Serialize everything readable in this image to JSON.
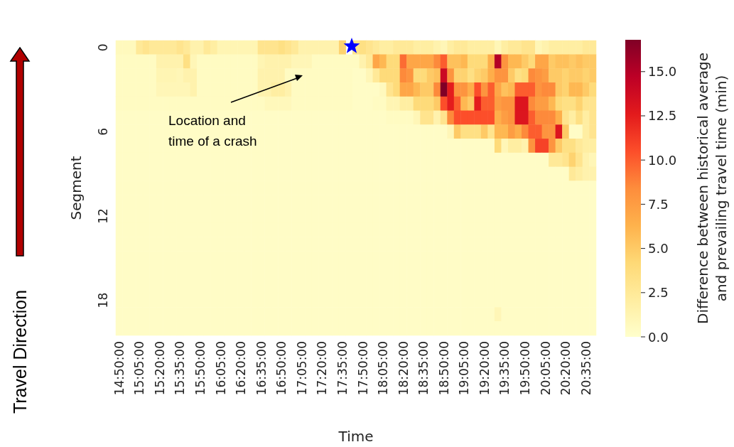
{
  "chart_data": {
    "type": "heatmap",
    "categories": [
      "14:50:00",
      null,
      null,
      "15:05:00",
      null,
      null,
      "15:20:00",
      null,
      null,
      "15:35:00",
      null,
      null,
      "15:50:00",
      null,
      null,
      "16:05:00",
      null,
      null,
      "16:20:00",
      null,
      null,
      "16:35:00",
      null,
      null,
      "16:50:00",
      null,
      null,
      "17:05:00",
      null,
      null,
      "17:20:00",
      null,
      null,
      "17:35:00",
      null,
      null,
      "17:50:00",
      null,
      null,
      "18:05:00",
      null,
      null,
      "18:20:00",
      null,
      null,
      "18:35:00",
      null,
      null,
      "18:50:00",
      null,
      null,
      "19:05:00",
      null,
      null,
      "19:20:00",
      null,
      null,
      "19:35:00",
      null,
      null,
      "19:50:00",
      null,
      null,
      "20:05:00",
      null,
      null,
      "20:20:00",
      null,
      null,
      "20:35:00",
      null
    ],
    "y_categories": [
      "0",
      null,
      null,
      null,
      null,
      null,
      "6",
      null,
      null,
      null,
      null,
      null,
      "12",
      null,
      null,
      null,
      null,
      null,
      "18",
      null,
      null
    ],
    "xlabel": "Time",
    "ylabel": "Segment",
    "clabel": "Difference between historical average\nand prevailing travel time (min)",
    "clim": [
      0,
      16.8
    ],
    "cticks": [
      {
        "value": 0,
        "label": "0.0"
      },
      {
        "value": 2.5,
        "label": "2.5"
      },
      {
        "value": 5,
        "label": "5.0"
      },
      {
        "value": 7.5,
        "label": "7.5"
      },
      {
        "value": 10,
        "label": "10.0"
      },
      {
        "value": 12.5,
        "label": "12.5"
      },
      {
        "value": 15,
        "label": "15.0"
      }
    ],
    "annotations": [
      "Location and time of a crash",
      "Travel Direction"
    ],
    "cells": [
      [
        0.7,
        0.7,
        0.7,
        2.5,
        3,
        2.5,
        2.5,
        2.5,
        2.5,
        3,
        2.5,
        1.5,
        1.5,
        2.5,
        2,
        1.2,
        1.2,
        1.2,
        1.2,
        1.2,
        1.2,
        3,
        3,
        3,
        3.5,
        3,
        2.5,
        1.5,
        1.5,
        1.5,
        1.5,
        1.5,
        1.5,
        4.5,
        null,
        3,
        3.5,
        3,
        2.5,
        2,
        2,
        2.5,
        2.5,
        2.5,
        2,
        2,
        2,
        1.5,
        1,
        2,
        2.5,
        2.5,
        2,
        2,
        2,
        2,
        1,
        2,
        2.5,
        2.5,
        3,
        3,
        1,
        1.5,
        2,
        2,
        2,
        2,
        2,
        2.5,
        2.5
      ],
      [
        0.5,
        0.5,
        0.5,
        0.5,
        0.5,
        0.5,
        1.5,
        1.5,
        1.5,
        1.5,
        3.5,
        1,
        0.5,
        0.5,
        0.5,
        0.5,
        0.5,
        0.5,
        0.5,
        0.5,
        0.5,
        1.2,
        1.5,
        1.5,
        1.5,
        1.5,
        1,
        1,
        1,
        0.5,
        0.5,
        0.5,
        0.5,
        0.5,
        0.5,
        0.5,
        1.5,
        2.5,
        7,
        6,
        4,
        4,
        9.5,
        7,
        7,
        7,
        7,
        8.5,
        10,
        5.5,
        5.5,
        6,
        4,
        4,
        4,
        6.5,
        15,
        8,
        6,
        6,
        5,
        4,
        7,
        7,
        5,
        5.5,
        5.5,
        5,
        5.5,
        5,
        5
      ],
      [
        0.5,
        0.5,
        0.5,
        0.5,
        0.5,
        0.5,
        1.2,
        1.2,
        1.2,
        1,
        1.5,
        1.5,
        0.5,
        0.5,
        0.5,
        0.5,
        0.5,
        0.5,
        0.5,
        0.5,
        0.5,
        1.5,
        1.5,
        1.5,
        1.5,
        0.5,
        0.5,
        0.5,
        0.5,
        0.5,
        0.5,
        0.5,
        0.5,
        0.5,
        0.5,
        0.3,
        0.3,
        1,
        2.5,
        4,
        4,
        4,
        8.5,
        8,
        4,
        4,
        5,
        5.5,
        14,
        8,
        4.5,
        4.5,
        3.5,
        4.5,
        5,
        6.5,
        8,
        8,
        5,
        3.5,
        4,
        8.5,
        8,
        7.5,
        5,
        5,
        4.5,
        5,
        5,
        4.5,
        5
      ],
      [
        0.5,
        0.5,
        0.5,
        0.5,
        0.5,
        0.5,
        1,
        1,
        1,
        1,
        1,
        1.5,
        0.5,
        0.5,
        0.5,
        0.5,
        0.5,
        0.5,
        0.5,
        0.5,
        0.5,
        1.5,
        1.5,
        2,
        2,
        1.5,
        0.5,
        0.5,
        0.5,
        0.5,
        0.5,
        0.5,
        0.5,
        0.5,
        0.5,
        0.3,
        0.3,
        0.3,
        0.3,
        0.7,
        3,
        4,
        7,
        7,
        6,
        5,
        5,
        8.5,
        16.8,
        12.5,
        8,
        8,
        6.5,
        10.5,
        8,
        10,
        7,
        5.5,
        6,
        10,
        10,
        10,
        8,
        8.5,
        8.5,
        5,
        4.5,
        6,
        6,
        5,
        4
      ],
      [
        0.5,
        0.5,
        0.5,
        0.5,
        0.5,
        0.5,
        0.5,
        0.5,
        0.5,
        0.5,
        0.5,
        0.5,
        0.5,
        0.5,
        0.5,
        0.5,
        0.5,
        0.5,
        0.5,
        0.5,
        0.5,
        0.5,
        0.8,
        0.8,
        0.8,
        0.8,
        0.5,
        0.5,
        0.5,
        0.5,
        0.5,
        0.5,
        0.5,
        0.5,
        0.5,
        0.3,
        0.3,
        0.3,
        0.5,
        0.5,
        1.2,
        1.2,
        2,
        2,
        4,
        4,
        4,
        5,
        10.5,
        12.5,
        10,
        6,
        5,
        12.5,
        10,
        10,
        7.5,
        8,
        8,
        13,
        13,
        8.5,
        7.5,
        7.5,
        6,
        4,
        3.5,
        3.5,
        4.5,
        3,
        3
      ],
      [
        0.3,
        0.3,
        0.3,
        0.3,
        0.3,
        0.3,
        0.3,
        0.3,
        0.3,
        0.3,
        0.3,
        0.3,
        0.3,
        0.3,
        0.3,
        0.3,
        0.3,
        0.3,
        0.3,
        0.3,
        0.3,
        0.3,
        0.3,
        0.3,
        0.3,
        0.3,
        0.3,
        0.3,
        0.3,
        0.3,
        0.3,
        0.3,
        0.3,
        0.3,
        0.3,
        0.3,
        0.3,
        0.3,
        0.3,
        0.3,
        0.5,
        0.5,
        0.5,
        0.5,
        1,
        3,
        3,
        1.5,
        3,
        8.5,
        10.5,
        10.5,
        10.5,
        10.5,
        10.5,
        10.5,
        6.5,
        7.5,
        8,
        13,
        13,
        10,
        8.5,
        8.5,
        8.5,
        6.5,
        3,
        2,
        3.5,
        2,
        3
      ],
      [
        0.3,
        0.3,
        0.3,
        0.3,
        0.3,
        0.3,
        0.3,
        0.3,
        0.3,
        0.3,
        0.3,
        0.3,
        0.3,
        0.3,
        0.3,
        0.3,
        0.3,
        0.3,
        0.3,
        0.3,
        0.3,
        0.3,
        0.3,
        0.3,
        0.3,
        0.3,
        0.3,
        0.3,
        0.3,
        0.3,
        0.3,
        0.3,
        0.3,
        0.3,
        0.3,
        0.3,
        0.3,
        0.3,
        0.3,
        0.3,
        0.3,
        0.3,
        0.3,
        0.3,
        0.3,
        0.3,
        0.3,
        0.3,
        0.3,
        1,
        5,
        3.5,
        3.5,
        3.5,
        5,
        3,
        6,
        6,
        7.5,
        6.5,
        8.5,
        10,
        10,
        8,
        8,
        13,
        5,
        0.3,
        0.3,
        2,
        3
      ],
      [
        0.3,
        0.3,
        0.3,
        0.3,
        0.3,
        0.3,
        0.3,
        0.3,
        0.3,
        0.3,
        0.3,
        0.3,
        0.3,
        0.3,
        0.3,
        0.3,
        0.3,
        0.3,
        0.3,
        0.3,
        0.3,
        0.3,
        0.3,
        0.3,
        0.3,
        0.3,
        0.3,
        0.3,
        0.3,
        0.3,
        0.3,
        0.3,
        0.3,
        0.3,
        0.3,
        0.3,
        0.3,
        0.3,
        0.3,
        0.3,
        0.3,
        0.3,
        0.3,
        0.3,
        0.3,
        0.3,
        0.3,
        0.3,
        0.3,
        0.3,
        0.3,
        0.3,
        0.3,
        0.3,
        0.3,
        0.3,
        4,
        1,
        2,
        2,
        1.5,
        8,
        11,
        11,
        8,
        5,
        3.5,
        3.5,
        2.5,
        2,
        2
      ],
      [
        0.3,
        0.3,
        0.3,
        0.3,
        0.3,
        0.3,
        0.3,
        0.3,
        0.3,
        0.3,
        0.3,
        0.3,
        0.3,
        0.3,
        0.3,
        0.3,
        0.3,
        0.3,
        0.3,
        0.3,
        0.3,
        0.3,
        0.3,
        0.3,
        0.3,
        0.3,
        0.3,
        0.3,
        0.3,
        0.3,
        0.3,
        0.3,
        0.3,
        0.3,
        0.3,
        0.3,
        0.3,
        0.3,
        0.3,
        0.3,
        0.3,
        0.3,
        0.3,
        0.3,
        0.3,
        0.3,
        0.3,
        0.3,
        0.3,
        0.3,
        0.3,
        0.3,
        0.3,
        0.3,
        0.3,
        0.3,
        0.3,
        0.3,
        0.3,
        0.3,
        0.3,
        0.3,
        0.3,
        0.3,
        2.5,
        2.5,
        3,
        4.5,
        3,
        1.5,
        1
      ],
      [
        0.3,
        0.3,
        0.3,
        0.3,
        0.3,
        0.3,
        0.3,
        0.3,
        0.3,
        0.3,
        0.3,
        0.3,
        0.3,
        0.3,
        0.3,
        0.3,
        0.3,
        0.3,
        0.3,
        0.3,
        0.3,
        0.3,
        0.3,
        0.3,
        0.3,
        0.3,
        0.3,
        0.3,
        0.3,
        0.3,
        0.3,
        0.3,
        0.3,
        0.3,
        0.3,
        0.3,
        0.3,
        0.3,
        0.3,
        0.3,
        0.3,
        0.3,
        0.3,
        0.3,
        0.3,
        0.3,
        0.3,
        0.3,
        0.3,
        0.3,
        0.3,
        0.3,
        0.3,
        0.3,
        0.3,
        0.3,
        0.3,
        0.3,
        0.3,
        0.3,
        0.3,
        0.3,
        0.3,
        0.3,
        0.3,
        0.3,
        0.3,
        2.5,
        2,
        1.5,
        1.5
      ],
      [
        0.3,
        0.3,
        0.3,
        0.3,
        0.3,
        0.3,
        0.3,
        0.3,
        0.3,
        0.3,
        0.3,
        0.3,
        0.3,
        0.3,
        0.3,
        0.3,
        0.3,
        0.3,
        0.3,
        0.3,
        0.3,
        0.3,
        0.3,
        0.3,
        0.3,
        0.3,
        0.3,
        0.3,
        0.3,
        0.3,
        0.3,
        0.3,
        0.3,
        0.3,
        0.3,
        0.3,
        0.3,
        0.3,
        0.3,
        0.3,
        0.3,
        0.3,
        0.3,
        0.3,
        0.3,
        0.3,
        0.3,
        0.3,
        0.3,
        0.3,
        0.3,
        0.3,
        0.3,
        0.3,
        0.3,
        0.3,
        0.3,
        0.3,
        0.3,
        0.3,
        0.3,
        0.3,
        0.3,
        0.3,
        0.3,
        0.3,
        0.3,
        0.3,
        0.3,
        0.3,
        0.3
      ],
      [
        0.3,
        0.3,
        0.3,
        0.3,
        0.3,
        0.3,
        0.3,
        0.3,
        0.3,
        0.3,
        0.3,
        0.3,
        0.3,
        0.3,
        0.3,
        0.3,
        0.3,
        0.3,
        0.3,
        0.3,
        0.3,
        0.3,
        0.3,
        0.3,
        0.3,
        0.3,
        0.3,
        0.3,
        0.3,
        0.3,
        0.3,
        0.3,
        0.3,
        0.3,
        0.3,
        0.3,
        0.3,
        0.3,
        0.3,
        0.3,
        0.3,
        0.3,
        0.3,
        0.3,
        0.3,
        0.3,
        0.3,
        0.3,
        0.3,
        0.3,
        0.3,
        0.3,
        0.3,
        0.3,
        0.3,
        0.3,
        0.3,
        0.3,
        0.3,
        0.3,
        0.3,
        0.3,
        0.3,
        0.3,
        0.3,
        0.3,
        0.3,
        0.3,
        0.3,
        0.3,
        0.3
      ],
      [
        0.3,
        0.3,
        0.3,
        0.3,
        0.3,
        0.3,
        0.3,
        0.3,
        0.3,
        0.3,
        0.3,
        0.3,
        0.3,
        0.3,
        0.3,
        0.3,
        0.3,
        0.3,
        0.3,
        0.3,
        0.3,
        0.3,
        0.3,
        0.3,
        0.3,
        0.3,
        0.3,
        0.3,
        0.3,
        0.3,
        0.3,
        0.3,
        0.3,
        0.3,
        0.3,
        0.3,
        0.3,
        0.3,
        0.3,
        0.3,
        0.3,
        0.3,
        0.3,
        0.3,
        0.3,
        0.3,
        0.3,
        0.3,
        0.3,
        0.3,
        0.3,
        0.3,
        0.3,
        0.3,
        0.3,
        0.3,
        0.3,
        0.3,
        0.3,
        0.3,
        0.3,
        0.3,
        0.3,
        0.3,
        0.3,
        0.3,
        0.3,
        0.3,
        0.3,
        0.3,
        0.3
      ],
      [
        0.3,
        0.3,
        0.3,
        0.3,
        0.3,
        0.3,
        0.3,
        0.3,
        0.3,
        0.3,
        0.3,
        0.3,
        0.3,
        0.3,
        0.3,
        0.3,
        0.3,
        0.3,
        0.3,
        0.3,
        0.3,
        0.3,
        0.3,
        0.3,
        0.3,
        0.3,
        0.3,
        0.3,
        0.3,
        0.3,
        0.3,
        0.3,
        0.3,
        0.3,
        0.3,
        0.3,
        0.3,
        0.3,
        0.3,
        0.3,
        0.3,
        0.3,
        0.3,
        0.3,
        0.3,
        0.3,
        0.3,
        0.3,
        0.3,
        0.3,
        0.3,
        0.3,
        0.3,
        0.3,
        0.3,
        0.3,
        0.3,
        0.3,
        0.3,
        0.3,
        0.3,
        0.3,
        0.3,
        0.3,
        0.3,
        0.3,
        0.3,
        0.3,
        0.3,
        0.3,
        0.3
      ],
      [
        0.3,
        0.3,
        0.3,
        0.3,
        0.3,
        0.3,
        0.3,
        0.3,
        0.3,
        0.3,
        0.3,
        0.3,
        0.3,
        0.3,
        0.3,
        0.3,
        0.3,
        0.3,
        0.3,
        0.3,
        0.3,
        0.3,
        0.3,
        0.3,
        0.3,
        0.3,
        0.3,
        0.3,
        0.3,
        0.3,
        0.3,
        0.3,
        0.3,
        0.3,
        0.3,
        0.3,
        0.3,
        0.3,
        0.3,
        0.3,
        0.3,
        0.3,
        0.3,
        0.3,
        0.3,
        0.3,
        0.3,
        0.3,
        0.3,
        0.3,
        0.3,
        0.3,
        0.3,
        0.3,
        0.3,
        0.3,
        0.3,
        0.3,
        0.3,
        0.3,
        0.3,
        0.3,
        0.3,
        0.3,
        0.3,
        0.3,
        0.3,
        0.3,
        0.3,
        0.3,
        0.3
      ],
      [
        0.3,
        0.3,
        0.3,
        0.3,
        0.3,
        0.3,
        0.3,
        0.3,
        0.3,
        0.3,
        0.3,
        0.3,
        0.3,
        0.3,
        0.3,
        0.3,
        0.3,
        0.3,
        0.3,
        0.3,
        0.3,
        0.3,
        0.3,
        0.3,
        0.3,
        0.3,
        0.3,
        0.3,
        0.3,
        0.3,
        0.3,
        0.3,
        0.3,
        0.3,
        0.3,
        0.3,
        0.3,
        0.3,
        0.3,
        0.3,
        0.3,
        0.3,
        0.3,
        0.3,
        0.3,
        0.3,
        0.3,
        0.3,
        0.3,
        0.3,
        0.3,
        0.3,
        0.3,
        0.3,
        0.3,
        0.3,
        0.3,
        0.3,
        0.3,
        0.3,
        0.3,
        0.3,
        0.3,
        0.3,
        0.3,
        0.3,
        0.3,
        0.3,
        0.3,
        0.3,
        0.3
      ],
      [
        0.3,
        0.3,
        0.3,
        0.3,
        0.3,
        0.3,
        0.3,
        0.3,
        0.3,
        0.3,
        0.3,
        0.3,
        0.3,
        0.3,
        0.3,
        0.3,
        0.3,
        0.3,
        0.3,
        0.3,
        0.3,
        0.3,
        0.3,
        0.3,
        0.3,
        0.3,
        0.3,
        0.3,
        0.3,
        0.3,
        0.3,
        0.3,
        0.3,
        0.3,
        0.3,
        0.3,
        0.3,
        0.3,
        0.3,
        0.3,
        0.3,
        0.3,
        0.3,
        0.3,
        0.3,
        0.3,
        0.3,
        0.3,
        0.3,
        0.3,
        0.3,
        0.3,
        0.3,
        0.3,
        0.3,
        0.3,
        0.3,
        0.3,
        0.3,
        0.3,
        0.3,
        0.3,
        0.3,
        0.3,
        0.3,
        0.3,
        0.3,
        0.3,
        0.3,
        0.3,
        0.3
      ],
      [
        0.3,
        0.3,
        0.3,
        0.3,
        0.3,
        0.3,
        0.3,
        0.3,
        0.3,
        0.3,
        0.3,
        0.3,
        0.3,
        0.3,
        0.3,
        0.3,
        0.3,
        0.3,
        0.3,
        0.3,
        0.3,
        0.3,
        0.3,
        0.3,
        0.3,
        0.3,
        0.3,
        0.3,
        0.3,
        0.3,
        0.3,
        0.3,
        0.3,
        0.3,
        0.3,
        0.3,
        0.3,
        0.3,
        0.3,
        0.3,
        0.3,
        0.3,
        0.3,
        0.3,
        0.3,
        0.3,
        0.3,
        0.3,
        0.3,
        0.3,
        0.3,
        0.3,
        0.3,
        0.3,
        0.3,
        0.3,
        0.3,
        0.3,
        0.3,
        0.3,
        0.3,
        0.3,
        0.3,
        0.3,
        0.3,
        0.3,
        0.3,
        0.3,
        0.3,
        0.3,
        0.3
      ],
      [
        0.3,
        0.3,
        0.3,
        0.3,
        0.3,
        0.3,
        0.3,
        0.3,
        0.3,
        0.3,
        0.3,
        0.3,
        0.3,
        0.3,
        0.3,
        0.3,
        0.3,
        0.3,
        0.3,
        0.3,
        0.3,
        0.3,
        0.3,
        0.3,
        0.3,
        0.3,
        0.3,
        0.3,
        0.3,
        0.3,
        0.3,
        0.3,
        0.3,
        0.3,
        0.3,
        0.3,
        0.3,
        0.3,
        0.3,
        0.3,
        0.3,
        0.3,
        0.3,
        0.3,
        0.3,
        0.3,
        0.3,
        0.3,
        0.3,
        0.3,
        0.3,
        0.3,
        0.3,
        0.3,
        0.3,
        0.3,
        0.3,
        0.3,
        0.3,
        0.3,
        0.3,
        0.3,
        0.3,
        0.3,
        0.3,
        0.3,
        0.3,
        0.3,
        0.3,
        0.3,
        0.3
      ],
      [
        0.3,
        0.3,
        0.3,
        0.3,
        0.3,
        0.3,
        0.3,
        0.3,
        0.3,
        0.3,
        0.3,
        0.3,
        0.3,
        0.3,
        0.3,
        0.3,
        0.3,
        0.3,
        0.3,
        0.3,
        0.3,
        0.3,
        0.3,
        0.3,
        0.3,
        0.3,
        0.3,
        0.3,
        0.3,
        0.3,
        0.3,
        0.3,
        0.3,
        0.3,
        0.3,
        0.3,
        0.3,
        0.3,
        0.3,
        0.3,
        0.3,
        0.3,
        0.3,
        0.3,
        0.3,
        0.3,
        0.3,
        0.3,
        0.3,
        0.3,
        0.3,
        0.3,
        0.3,
        0.3,
        0.3,
        0.3,
        1,
        0.3,
        0.3,
        0.3,
        0.3,
        0.3,
        0.3,
        0.3,
        0.3,
        0.3,
        0.3,
        0.3,
        0.3,
        0.3,
        0.3
      ],
      [
        0.3,
        0.3,
        0.3,
        0.3,
        0.3,
        0.3,
        0.3,
        0.3,
        0.3,
        0.3,
        0.3,
        0.3,
        0.3,
        0.3,
        0.3,
        0.3,
        0.3,
        0.3,
        0.3,
        0.3,
        0.3,
        0.3,
        0.3,
        0.3,
        0.3,
        0.3,
        0.3,
        0.3,
        0.3,
        0.3,
        0.3,
        0.3,
        0.3,
        0.3,
        0.3,
        0.3,
        0.3,
        0.3,
        0.3,
        0.3,
        0.3,
        0.3,
        0.3,
        0.3,
        0.3,
        0.3,
        0.3,
        0.3,
        0.3,
        0.3,
        0.3,
        0.3,
        0.3,
        0.3,
        0.3,
        0.3,
        0.3,
        0.3,
        0.3,
        0.3,
        0.3,
        0.3,
        0.3,
        0.3,
        0.3,
        0.3,
        0.3,
        0.3,
        0.3,
        0.3,
        0.3
      ]
    ]
  }
}
